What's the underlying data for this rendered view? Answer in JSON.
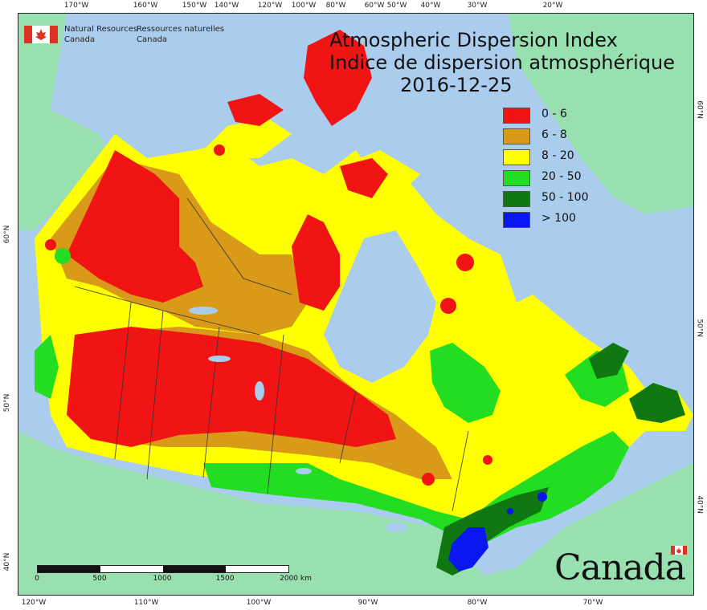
{
  "title": {
    "en": "Atmospheric Dispersion Index",
    "fr": "Indice de dispersion atmosphérique",
    "date": "2016-12-25"
  },
  "agency": {
    "en_line1": "Natural Resources",
    "en_line2": "Canada",
    "fr_line1": "Ressources naturelles",
    "fr_line2": "Canada"
  },
  "wordmark": "Canada",
  "legend": [
    {
      "label": "0 - 6",
      "color": "#f01414"
    },
    {
      "label": "6 - 8",
      "color": "#d99a1a"
    },
    {
      "label": "8 - 20",
      "color": "#ffff00"
    },
    {
      "label": "20 - 50",
      "color": "#22dd22"
    },
    {
      "label": "50 - 100",
      "color": "#117711"
    },
    {
      "label": "> 100",
      "color": "#0a17f0"
    }
  ],
  "scale": {
    "labels": [
      "0",
      "500",
      "1000",
      "1500",
      "2000  km"
    ]
  },
  "ticks": {
    "top": [
      "170°W",
      "160°W",
      "150°W",
      "140°W",
      "120°W",
      "100°W",
      "80°W",
      "60°W",
      "50°W",
      "40°W",
      "30°W",
      "20°W"
    ],
    "bottom": [
      "120°W",
      "110°W",
      "100°W",
      "90°W",
      "80°W",
      "70°W"
    ],
    "left": [
      "60°N",
      "50°N",
      "40°N"
    ],
    "right": [
      "60°N",
      "50°N",
      "40°N"
    ]
  },
  "colors": {
    "ocean": "#aacdee",
    "land_outside": "#98e0b0",
    "frame": "#ffffff"
  }
}
